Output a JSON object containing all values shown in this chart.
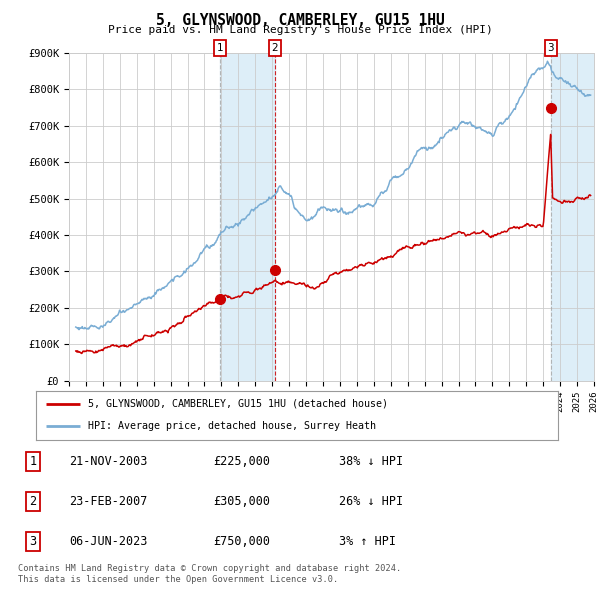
{
  "title": "5, GLYNSWOOD, CAMBERLEY, GU15 1HU",
  "subtitle": "Price paid vs. HM Land Registry's House Price Index (HPI)",
  "ylim": [
    0,
    900000
  ],
  "yticks": [
    0,
    100000,
    200000,
    300000,
    400000,
    500000,
    600000,
    700000,
    800000,
    900000
  ],
  "ytick_labels": [
    "£0",
    "£100K",
    "£200K",
    "£300K",
    "£400K",
    "£500K",
    "£600K",
    "£700K",
    "£800K",
    "£900K"
  ],
  "hpi_color": "#7aadd4",
  "price_color": "#cc0000",
  "bg_color": "#ffffff",
  "grid_color": "#cccccc",
  "transactions": [
    {
      "date_num": 2003.9,
      "price": 225000,
      "label": "1"
    },
    {
      "date_num": 2007.15,
      "price": 305000,
      "label": "2"
    },
    {
      "date_num": 2023.44,
      "price": 750000,
      "label": "3"
    }
  ],
  "transaction_table": [
    {
      "num": "1",
      "date": "21-NOV-2003",
      "price": "£225,000",
      "pct": "38%",
      "dir": "↓",
      "hpi": "HPI"
    },
    {
      "num": "2",
      "date": "23-FEB-2007",
      "price": "£305,000",
      "pct": "26%",
      "dir": "↓",
      "hpi": "HPI"
    },
    {
      "num": "3",
      "date": "06-JUN-2023",
      "price": "£750,000",
      "pct": "3%",
      "dir": "↑",
      "hpi": "HPI"
    }
  ],
  "legend_line1": "5, GLYNSWOOD, CAMBERLEY, GU15 1HU (detached house)",
  "legend_line2": "HPI: Average price, detached house, Surrey Heath",
  "footnote1": "Contains HM Land Registry data © Crown copyright and database right 2024.",
  "footnote2": "This data is licensed under the Open Government Licence v3.0.",
  "xmin": 1995,
  "xmax": 2026,
  "xticks": [
    1995,
    1996,
    1997,
    1998,
    1999,
    2000,
    2001,
    2002,
    2003,
    2004,
    2005,
    2006,
    2007,
    2008,
    2009,
    2010,
    2011,
    2012,
    2013,
    2014,
    2015,
    2016,
    2017,
    2018,
    2019,
    2020,
    2021,
    2022,
    2023,
    2024,
    2025,
    2026
  ],
  "shaded_between_color": "#ddeef8",
  "hatch_color": "#ddeef8"
}
